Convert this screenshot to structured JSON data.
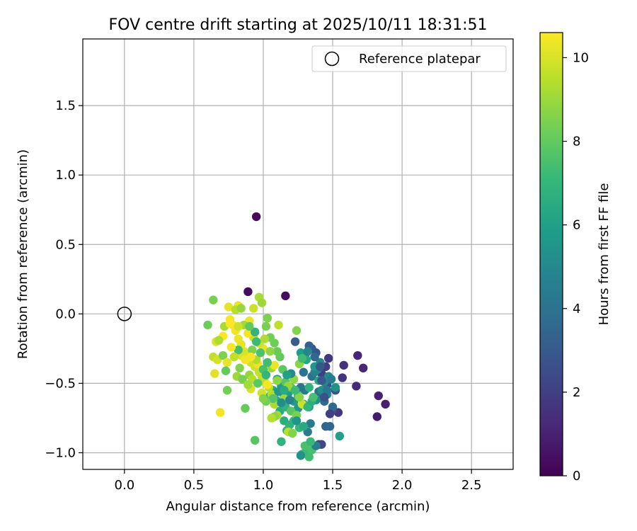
{
  "chart_data": {
    "type": "scatter",
    "title": "FOV centre drift starting at 2025/10/11 18:31:51",
    "xlabel": "Angular distance from reference (arcmin)",
    "ylabel": "Rotation from reference (arcmin)",
    "xlim": [
      -0.3,
      2.8
    ],
    "ylim": [
      -1.12,
      1.98
    ],
    "xticks": [
      0.0,
      0.5,
      1.0,
      1.5,
      2.0,
      2.5
    ],
    "xtick_labels": [
      "0.0",
      "0.5",
      "1.0",
      "1.5",
      "2.0",
      "2.5"
    ],
    "yticks": [
      -1.0,
      -0.5,
      0.0,
      0.5,
      1.0,
      1.5
    ],
    "ytick_labels": [
      "−1.0",
      "−0.5",
      "0.0",
      "0.5",
      "1.0",
      "1.5"
    ],
    "grid": true,
    "legend": {
      "placement": "upper right",
      "entries": [
        "Reference platepar"
      ]
    },
    "reference_point": {
      "x": 0.0,
      "y": 0.0
    },
    "colorbar": {
      "label": "Hours from first FF file",
      "range": [
        0,
        10.6
      ],
      "ticks": [
        0,
        2,
        4,
        6,
        8,
        10
      ],
      "tick_labels": [
        "0",
        "2",
        "4",
        "6",
        "8",
        "10"
      ],
      "colormap": [
        "#440154",
        "#482878",
        "#3e4989",
        "#31688e",
        "#26828e",
        "#1f9e89",
        "#35b779",
        "#6ece58",
        "#b5de2b",
        "#fde725"
      ]
    },
    "series": [
      {
        "name": "FOV centre",
        "points": [
          [
            0.95,
            0.7,
            0.2
          ],
          [
            0.89,
            0.16,
            0.3
          ],
          [
            1.16,
            0.13,
            0.4
          ],
          [
            1.82,
            -0.74,
            0.8
          ],
          [
            1.88,
            -0.65,
            0.9
          ],
          [
            1.83,
            -0.59,
            1.0
          ],
          [
            1.68,
            -0.3,
            1.1
          ],
          [
            1.72,
            -0.39,
            1.2
          ],
          [
            1.67,
            -0.52,
            1.3
          ],
          [
            1.58,
            -0.37,
            1.5
          ],
          [
            1.57,
            -0.46,
            1.6
          ],
          [
            1.54,
            -0.71,
            1.7
          ],
          [
            1.47,
            -0.32,
            1.8
          ],
          [
            1.45,
            -0.38,
            1.9
          ],
          [
            1.42,
            -0.43,
            2.0
          ],
          [
            1.4,
            -0.94,
            2.1
          ],
          [
            1.42,
            -0.94,
            2.3
          ],
          [
            1.5,
            -0.69,
            2.4
          ],
          [
            1.52,
            -0.55,
            2.5
          ],
          [
            1.46,
            -0.51,
            2.6
          ],
          [
            1.38,
            -0.28,
            2.8
          ],
          [
            1.35,
            -0.25,
            2.9
          ],
          [
            1.3,
            -0.3,
            3.0
          ],
          [
            1.23,
            -0.2,
            3.1
          ],
          [
            1.33,
            -0.23,
            3.2
          ],
          [
            1.43,
            -0.6,
            3.3
          ],
          [
            1.45,
            -0.81,
            3.4
          ],
          [
            1.48,
            -0.81,
            3.5
          ],
          [
            1.5,
            -0.67,
            3.6
          ],
          [
            1.44,
            -0.63,
            3.7
          ],
          [
            1.4,
            -0.56,
            3.8
          ],
          [
            1.35,
            -0.45,
            3.9
          ],
          [
            1.29,
            -0.42,
            4.0
          ],
          [
            1.27,
            -0.53,
            4.1
          ],
          [
            1.3,
            -0.55,
            4.2
          ],
          [
            1.34,
            -0.79,
            4.3
          ],
          [
            1.32,
            -0.85,
            4.4
          ],
          [
            1.36,
            -0.61,
            4.5
          ],
          [
            1.37,
            -0.42,
            4.6
          ],
          [
            1.39,
            -0.4,
            4.7
          ],
          [
            1.41,
            -0.35,
            4.8
          ],
          [
            1.44,
            -0.49,
            4.9
          ],
          [
            1.47,
            -0.45,
            5.0
          ],
          [
            1.46,
            -0.58,
            5.1
          ],
          [
            1.42,
            -0.55,
            5.2
          ],
          [
            1.38,
            -0.62,
            5.3
          ],
          [
            1.33,
            -0.67,
            5.4
          ],
          [
            1.29,
            -0.65,
            5.5
          ],
          [
            1.25,
            -0.68,
            5.6
          ],
          [
            1.22,
            -0.63,
            5.7
          ],
          [
            1.18,
            -0.57,
            5.8
          ],
          [
            1.15,
            -0.6,
            5.9
          ],
          [
            1.13,
            -0.52,
            6.0
          ],
          [
            1.1,
            -0.47,
            6.1
          ],
          [
            1.07,
            -0.55,
            6.2
          ],
          [
            1.05,
            -0.59,
            6.3
          ],
          [
            1.09,
            -0.62,
            6.4
          ],
          [
            1.12,
            -0.7,
            6.5
          ],
          [
            1.15,
            -0.77,
            6.6
          ],
          [
            1.17,
            -0.84,
            6.7
          ],
          [
            1.19,
            -0.8,
            6.8
          ],
          [
            1.22,
            -0.77,
            6.9
          ],
          [
            1.26,
            -0.82,
            7.0
          ],
          [
            1.28,
            -1.01,
            7.1
          ],
          [
            1.3,
            -1.0,
            7.2
          ],
          [
            1.33,
            -1.03,
            7.3
          ],
          [
            1.35,
            -0.98,
            7.4
          ],
          [
            1.3,
            -0.95,
            7.5
          ],
          [
            1.25,
            -0.59,
            7.6
          ],
          [
            1.2,
            -0.53,
            7.7
          ],
          [
            1.16,
            -0.49,
            7.8
          ],
          [
            1.14,
            -0.4,
            7.9
          ],
          [
            1.12,
            -0.31,
            8.0
          ],
          [
            1.1,
            -0.27,
            8.1
          ],
          [
            1.08,
            -0.21,
            8.2
          ],
          [
            1.05,
            -0.17,
            8.3
          ],
          [
            1.02,
            -0.09,
            8.4
          ],
          [
            1.03,
            -0.03,
            8.5
          ],
          [
            1.24,
            -0.12,
            8.6
          ],
          [
            1.26,
            -0.36,
            8.7
          ],
          [
            1.22,
            -0.47,
            8.8
          ],
          [
            1.18,
            -0.52,
            8.9
          ],
          [
            1.15,
            -0.61,
            9.0
          ],
          [
            1.1,
            -0.73,
            9.1
          ],
          [
            1.08,
            -0.65,
            9.2
          ],
          [
            1.06,
            -0.58,
            9.3
          ],
          [
            1.04,
            -0.53,
            9.4
          ],
          [
            1.01,
            -0.49,
            9.5
          ],
          [
            0.99,
            -0.45,
            9.6
          ],
          [
            0.97,
            -0.42,
            9.7
          ],
          [
            0.94,
            -0.38,
            9.8
          ],
          [
            0.91,
            -0.35,
            9.9
          ],
          [
            0.89,
            -0.31,
            10.0
          ],
          [
            0.86,
            -0.27,
            10.1
          ],
          [
            0.84,
            -0.22,
            10.2
          ],
          [
            0.82,
            -0.18,
            10.3
          ],
          [
            0.8,
            -0.12,
            10.4
          ],
          [
            0.78,
            -0.08,
            10.5
          ],
          [
            0.76,
            -0.04,
            10.5
          ],
          [
            0.64,
            0.1,
            8.4
          ],
          [
            0.75,
            0.05,
            10.2
          ],
          [
            0.82,
            0.06,
            10.3
          ],
          [
            0.8,
            0.03,
            9.5
          ],
          [
            0.93,
            0.04,
            9.8
          ],
          [
            0.97,
            0.12,
            9.2
          ],
          [
            0.99,
            0.08,
            9.0
          ],
          [
            0.9,
            -0.05,
            10.3
          ],
          [
            0.86,
            -0.08,
            9.1
          ],
          [
            0.6,
            -0.08,
            8.2
          ],
          [
            0.66,
            -0.2,
            10.0
          ],
          [
            0.64,
            -0.31,
            9.6
          ],
          [
            0.67,
            -0.33,
            9.9
          ],
          [
            0.71,
            -0.3,
            8.5
          ],
          [
            0.74,
            -0.35,
            10.2
          ],
          [
            0.73,
            -0.41,
            8.0
          ],
          [
            0.65,
            -0.43,
            10.1
          ],
          [
            0.74,
            -0.55,
            8.3
          ],
          [
            0.69,
            -0.71,
            10.4
          ],
          [
            0.87,
            -0.68,
            8.1
          ],
          [
            0.94,
            -0.91,
            7.8
          ],
          [
            0.81,
            -0.45,
            9.0
          ],
          [
            0.83,
            -0.39,
            8.6
          ],
          [
            0.9,
            -0.44,
            8.9
          ],
          [
            0.92,
            -0.47,
            9.4
          ],
          [
            0.96,
            -0.5,
            7.9
          ],
          [
            0.91,
            -0.54,
            10.0
          ],
          [
            0.96,
            -0.36,
            10.3
          ],
          [
            1.0,
            -0.25,
            10.2
          ],
          [
            0.97,
            -0.21,
            9.8
          ],
          [
            0.93,
            -0.17,
            9.7
          ],
          [
            0.89,
            -0.14,
            10.4
          ],
          [
            0.84,
            -0.3,
            10.1
          ],
          [
            0.87,
            -0.29,
            10.0
          ],
          [
            0.92,
            -0.26,
            8.5
          ],
          [
            0.95,
            -0.33,
            9.3
          ],
          [
            1.0,
            -0.4,
            7.5
          ],
          [
            1.02,
            -0.44,
            7.0
          ],
          [
            1.06,
            -0.39,
            9.0
          ],
          [
            1.08,
            -0.37,
            10.3
          ],
          [
            1.05,
            -0.27,
            8.8
          ],
          [
            1.01,
            -0.18,
            9.3
          ],
          [
            1.11,
            -0.08,
            9.6
          ],
          [
            1.08,
            -0.74,
            8.7
          ],
          [
            1.06,
            -0.75,
            9.4
          ],
          [
            1.18,
            -0.85,
            9.5
          ],
          [
            1.28,
            -0.65,
            9.8
          ],
          [
            1.26,
            -0.6,
            8.7
          ],
          [
            1.32,
            -0.67,
            7.0
          ],
          [
            1.35,
            -0.63,
            6.6
          ],
          [
            1.29,
            -0.81,
            6.4
          ],
          [
            1.13,
            -0.92,
            6.8
          ],
          [
            1.27,
            -1.02,
            5.4
          ],
          [
            1.38,
            -0.95,
            4.5
          ],
          [
            1.55,
            -0.88,
            6.0
          ],
          [
            1.48,
            -0.72,
            2.0
          ],
          [
            1.52,
            -0.53,
            5.4
          ],
          [
            1.4,
            -0.48,
            6.3
          ],
          [
            1.33,
            -0.53,
            6.8
          ],
          [
            1.23,
            -0.55,
            7.2
          ],
          [
            1.16,
            -0.67,
            6.9
          ],
          [
            1.07,
            -0.61,
            7.7
          ],
          [
            1.02,
            -0.63,
            8.3
          ],
          [
            1.03,
            -0.35,
            7.3
          ],
          [
            0.98,
            -0.28,
            7.6
          ],
          [
            0.95,
            -0.2,
            7.2
          ],
          [
            0.94,
            -0.13,
            6.9
          ],
          [
            0.9,
            -0.09,
            8.0
          ],
          [
            0.84,
            0.04,
            8.9
          ],
          [
            0.82,
            -0.26,
            7.4
          ],
          [
            0.85,
            -0.47,
            8.4
          ],
          [
            0.89,
            -0.51,
            9.1
          ],
          [
            1.2,
            -0.7,
            7.8
          ],
          [
            1.24,
            -0.73,
            8.4
          ],
          [
            1.36,
            -0.6,
            7.5
          ],
          [
            1.42,
            -0.48,
            3.0
          ],
          [
            1.37,
            -0.38,
            5.6
          ],
          [
            1.31,
            -0.33,
            6.2
          ],
          [
            1.27,
            -0.28,
            5.9
          ],
          [
            1.2,
            -0.43,
            5.1
          ],
          [
            1.17,
            -0.44,
            6.0
          ],
          [
            1.11,
            -0.56,
            5.6
          ],
          [
            1.13,
            -0.64,
            5.2
          ],
          [
            1.19,
            -0.62,
            4.7
          ],
          [
            1.24,
            -0.77,
            5.5
          ],
          [
            1.21,
            -0.86,
            8.6
          ],
          [
            1.34,
            -0.92,
            7.1
          ],
          [
            1.46,
            -0.55,
            4.2
          ],
          [
            1.49,
            -0.47,
            4.4
          ],
          [
            1.44,
            -0.6,
            2.7
          ],
          [
            1.41,
            -0.38,
            2.9
          ],
          [
            1.37,
            -0.31,
            3.6
          ],
          [
            1.32,
            -0.27,
            4.9
          ],
          [
            1.28,
            -0.32,
            7.3
          ],
          [
            1.15,
            -0.55,
            6.4
          ],
          [
            1.1,
            -0.48,
            8.8
          ],
          [
            0.99,
            -0.57,
            9.9
          ],
          [
            1.03,
            -0.51,
            10.5
          ],
          [
            1.0,
            -0.61,
            8.6
          ],
          [
            0.91,
            -0.31,
            10.5
          ],
          [
            0.87,
            -0.33,
            10.4
          ],
          [
            0.79,
            -0.31,
            9.6
          ],
          [
            0.77,
            -0.24,
            10.5
          ],
          [
            0.71,
            -0.16,
            10.6
          ],
          [
            0.68,
            -0.19,
            9.3
          ],
          [
            0.72,
            -0.09,
            9.2
          ],
          [
            0.76,
            -0.07,
            10.6
          ],
          [
            0.82,
            -0.09,
            9.8
          ]
        ]
      }
    ]
  }
}
